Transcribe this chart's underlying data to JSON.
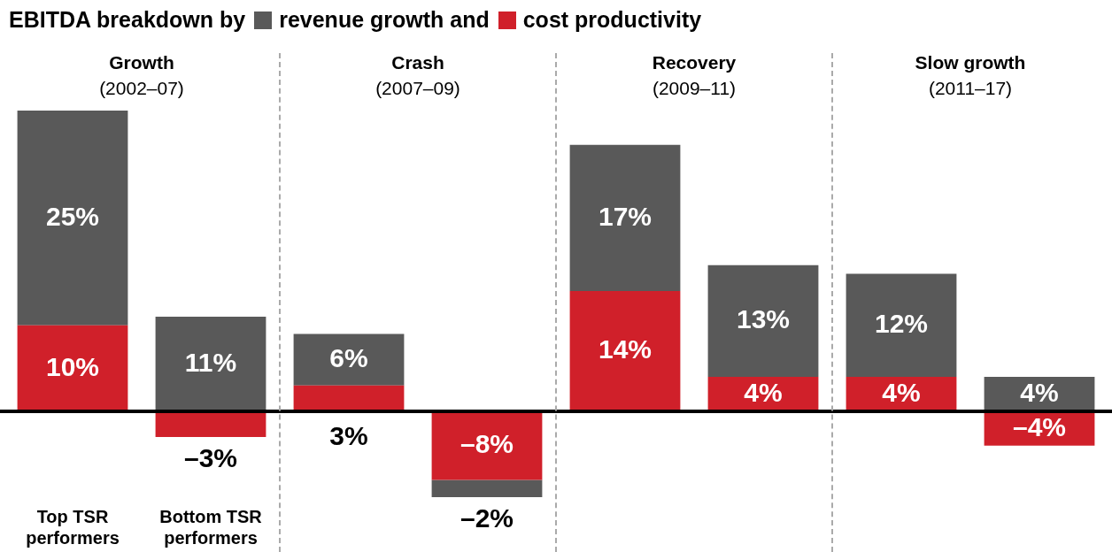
{
  "chart_data": {
    "type": "bar",
    "title": "EBITDA breakdown by",
    "stacked": true,
    "categories": [
      "Top TSR performers",
      "Bottom TSR performers",
      null,
      null,
      null,
      null,
      null,
      null
    ],
    "series": [
      {
        "name": "cost productivity",
        "color": "#d0202a",
        "values": [
          10,
          -3,
          3,
          -8,
          14,
          4,
          4,
          -4
        ],
        "value_labels": [
          "10%",
          "–3%",
          "3%",
          "–8%",
          "14%",
          "4%",
          "4%",
          "–4%"
        ]
      },
      {
        "name": "revenue growth and",
        "color": "#595959",
        "values": [
          25,
          11,
          6,
          -2,
          17,
          13,
          12,
          4
        ],
        "value_labels": [
          "25%",
          "11%",
          "6%",
          "–2%",
          "17%",
          "13%",
          "12%",
          "4%"
        ]
      }
    ],
    "annotations": [
      "Growth (2002–07)",
      "Crash (2007–09)",
      "Recovery (2009–11)",
      "Slow growth (2011–17)"
    ],
    "legend": "top left"
  }
}
